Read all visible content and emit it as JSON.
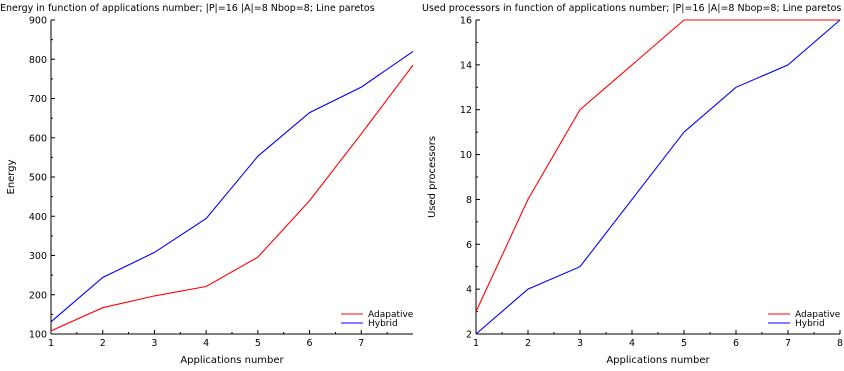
{
  "chart_data": [
    {
      "type": "line",
      "title": "Energy in function of applications number; |P|=16 |A|=8 Nbop=8; Line paretos",
      "xlabel": "Applications number",
      "ylabel": "Energy",
      "xlim": [
        1,
        8
      ],
      "ylim": [
        100,
        900
      ],
      "xticks": [
        1,
        2,
        3,
        4,
        5,
        6,
        7
      ],
      "yticks": [
        100,
        200,
        300,
        400,
        500,
        600,
        700,
        800,
        900
      ],
      "x": [
        1,
        2,
        3,
        4,
        5,
        6,
        7,
        8
      ],
      "series": [
        {
          "name": "Adapative",
          "color": "#ff0000",
          "values": [
            108,
            167,
            197,
            221,
            296,
            440,
            610,
            785
          ]
        },
        {
          "name": "Hybrid",
          "color": "#0000ff",
          "values": [
            131,
            244,
            308,
            394,
            553,
            664,
            729,
            820
          ]
        }
      ],
      "legend": "bottom-right",
      "grid": false
    },
    {
      "type": "line",
      "title": "Used processors in function of applications number; |P|=16 |A|=8 Nbop=8; Line paretos",
      "xlabel": "Applications number",
      "ylabel": "Used processors",
      "xlim": [
        1,
        8
      ],
      "ylim": [
        2,
        16
      ],
      "xticks": [
        1,
        2,
        3,
        4,
        5,
        6,
        7,
        8
      ],
      "yticks": [
        2,
        4,
        6,
        8,
        10,
        12,
        14,
        16
      ],
      "x": [
        1,
        2,
        3,
        4,
        5,
        6,
        7,
        8
      ],
      "series": [
        {
          "name": "Adapative",
          "color": "#ff0000",
          "values": [
            3,
            8,
            12,
            14,
            16,
            16,
            16,
            16
          ]
        },
        {
          "name": "Hybrid",
          "color": "#0000ff",
          "values": [
            2,
            4,
            5,
            8,
            11,
            13,
            14,
            16
          ]
        }
      ],
      "legend": "bottom-right",
      "grid": false
    }
  ]
}
